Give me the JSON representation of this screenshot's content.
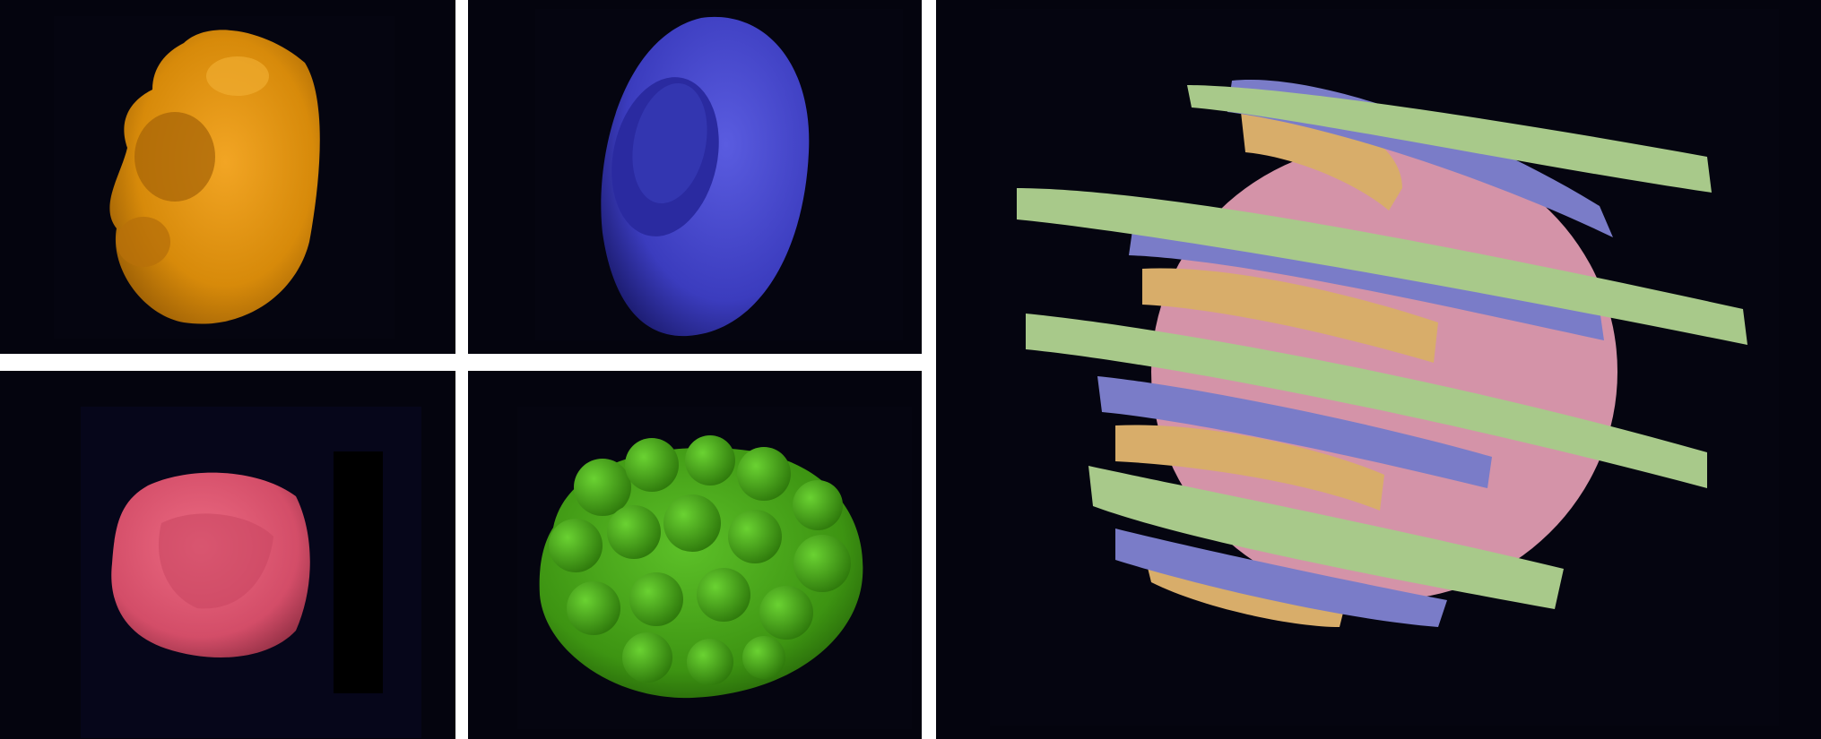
{
  "figure": {
    "panels": [
      {
        "id": "orange-structure",
        "color": "#d98c0c",
        "shape": "elongated lobed body"
      },
      {
        "id": "blue-structure",
        "color": "#3c3cbc",
        "shape": "cup-shaped ring"
      },
      {
        "id": "pink-structure",
        "color": "#d6506a",
        "shape": "rough rounded block"
      },
      {
        "id": "green-structure",
        "color": "#3f9a12",
        "shape": "bubbly cluster"
      },
      {
        "id": "combined-structure",
        "colors": [
          "#a8c98a",
          "#7a7cc8",
          "#d8ad6a",
          "#d493a8"
        ],
        "shape": "stacked interleaved slabs"
      }
    ],
    "background_color": "#04040e",
    "divider_color": "#ffffff"
  }
}
